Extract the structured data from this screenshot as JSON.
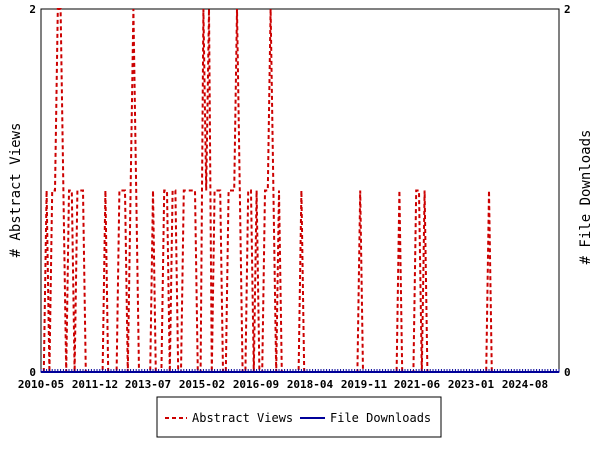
{
  "chart_data": {
    "type": "line",
    "title": "",
    "x_tick_labels": [
      "2010-05",
      "2011-12",
      "2013-07",
      "2015-02",
      "2016-09",
      "2018-04",
      "2019-11",
      "2021-06",
      "2023-01",
      "2024-08"
    ],
    "x_range": [
      "2010-05",
      "2025-10"
    ],
    "y_left": {
      "label": "# Abstract Views",
      "ticks": [
        "0",
        "2"
      ],
      "range": [
        0,
        2
      ]
    },
    "y_right": {
      "label": "# File Downloads",
      "ticks": [
        "0",
        "2"
      ],
      "range": [
        0,
        2
      ]
    },
    "grid": false,
    "legend": {
      "placement": "bottom-center"
    },
    "series": [
      {
        "name": "Abstract Views",
        "color": "#cc0000",
        "style": "dashed",
        "x": [
          "2010-06",
          "2010-07",
          "2010-08",
          "2010-09",
          "2010-10",
          "2010-11",
          "2010-12",
          "2011-01",
          "2011-02",
          "2011-03",
          "2011-04",
          "2011-05",
          "2011-06",
          "2011-07",
          "2011-08",
          "2011-09",
          "2011-10",
          "2011-11",
          "2011-12",
          "2012-01",
          "2012-02",
          "2012-03",
          "2012-04",
          "2012-05",
          "2012-06",
          "2012-07",
          "2012-08",
          "2012-09",
          "2012-10",
          "2012-11",
          "2012-12",
          "2013-01",
          "2013-02",
          "2013-03",
          "2013-04",
          "2013-05",
          "2013-06",
          "2013-07",
          "2013-08",
          "2013-09",
          "2013-10",
          "2013-11",
          "2013-12",
          "2014-01",
          "2014-02",
          "2014-03",
          "2014-04",
          "2014-05",
          "2014-06",
          "2014-07",
          "2014-08",
          "2014-09",
          "2014-10",
          "2014-11",
          "2014-12",
          "2015-01",
          "2015-02",
          "2015-03",
          "2015-04",
          "2015-05",
          "2015-06",
          "2015-07",
          "2015-08",
          "2015-09",
          "2015-10",
          "2015-11",
          "2015-12",
          "2016-01",
          "2016-02",
          "2016-03",
          "2016-04",
          "2016-05",
          "2016-06",
          "2016-07",
          "2016-08",
          "2016-09",
          "2016-10",
          "2016-11",
          "2016-12",
          "2017-01",
          "2017-02",
          "2017-03",
          "2017-04",
          "2017-05",
          "2017-06",
          "2017-07",
          "2017-08",
          "2017-09",
          "2017-10",
          "2017-11",
          "2017-12",
          "2018-01",
          "2018-02",
          "2018-03",
          "2018-04",
          "2018-05",
          "2018-06",
          "2018-07",
          "2018-08",
          "2018-09",
          "2018-10",
          "2018-11",
          "2018-12",
          "2019-01",
          "2019-02",
          "2019-03",
          "2019-04",
          "2019-05",
          "2019-06",
          "2019-07",
          "2019-08",
          "2019-09",
          "2019-10",
          "2019-11",
          "2019-12",
          "2020-01",
          "2020-02",
          "2020-03",
          "2020-04",
          "2020-05",
          "2020-06",
          "2020-07",
          "2020-08",
          "2020-09",
          "2020-10",
          "2020-11",
          "2020-12",
          "2021-01",
          "2021-02",
          "2021-03",
          "2021-04",
          "2021-05",
          "2021-06",
          "2021-07",
          "2021-08",
          "2021-09",
          "2021-10",
          "2021-11",
          "2021-12",
          "2022-01",
          "2022-02",
          "2022-03",
          "2022-04",
          "2022-05",
          "2022-06",
          "2022-07",
          "2022-08",
          "2022-09",
          "2022-10",
          "2022-11",
          "2022-12",
          "2023-01",
          "2023-02",
          "2023-03",
          "2023-04",
          "2023-05",
          "2023-06",
          "2023-07",
          "2023-08",
          "2023-09",
          "2023-10",
          "2023-11",
          "2023-12",
          "2024-01",
          "2024-02",
          "2024-03",
          "2024-04",
          "2024-05",
          "2024-06",
          "2024-07",
          "2024-08",
          "2024-09",
          "2024-10",
          "2024-11",
          "2024-12",
          "2025-01",
          "2025-02",
          "2025-03",
          "2025-04",
          "2025-05",
          "2025-06",
          "2025-07",
          "2025-08",
          "2025-09",
          "2025-10"
        ],
        "y": [
          0,
          1,
          0,
          1,
          1,
          2,
          2,
          1,
          0,
          1,
          1,
          0,
          1,
          1,
          1,
          0,
          0,
          0,
          0,
          0,
          0,
          0,
          1,
          0,
          0,
          0,
          0,
          1,
          1,
          1,
          0,
          1,
          2,
          1,
          0,
          0,
          0,
          0,
          0,
          1,
          0,
          0,
          0,
          1,
          1,
          0,
          1,
          1,
          0,
          0,
          1,
          1,
          1,
          1,
          1,
          0,
          0,
          2,
          1,
          2,
          0,
          1,
          1,
          1,
          0,
          0,
          1,
          1,
          1,
          2,
          1,
          0,
          0,
          1,
          1,
          0,
          1,
          0,
          0,
          1,
          1,
          2,
          1,
          0,
          1,
          0,
          0,
          0,
          0,
          0,
          0,
          0,
          1,
          0,
          0,
          0,
          0,
          0,
          0,
          0,
          0,
          0,
          0,
          0,
          0,
          0,
          0,
          0,
          0,
          0,
          0,
          0,
          0,
          1,
          0,
          0,
          0,
          0,
          0,
          0,
          0,
          0,
          0,
          0,
          0,
          0,
          0,
          1,
          0,
          0,
          0,
          0,
          0,
          1,
          1,
          0,
          1,
          0,
          0,
          0,
          0,
          0,
          0,
          0,
          0,
          0,
          0,
          0,
          0,
          0,
          0,
          0,
          0,
          0,
          0,
          0,
          0,
          0,
          0,
          1,
          0,
          0,
          0,
          0,
          0,
          0,
          0,
          0,
          0,
          0,
          0,
          0,
          0,
          0,
          0,
          0,
          0,
          0,
          0,
          0,
          0,
          0,
          0,
          0,
          0
        ]
      },
      {
        "name": "File Downloads",
        "color": "#000099",
        "style": "solid",
        "x": [
          "2010-05",
          "2025-10"
        ],
        "y": [
          0,
          0
        ]
      }
    ]
  }
}
